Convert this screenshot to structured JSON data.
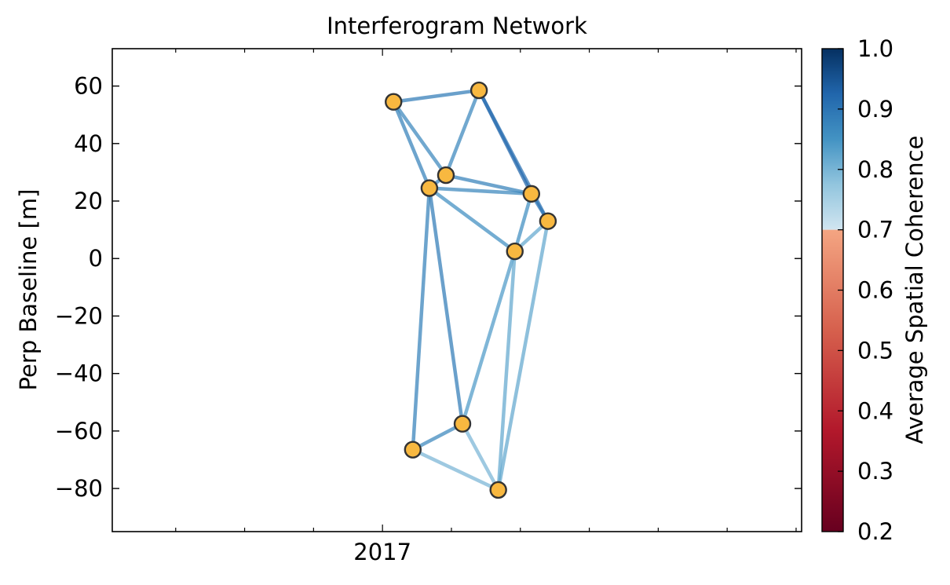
{
  "chart_data": {
    "type": "scatter",
    "title": "Interferogram Network",
    "xlabel": "",
    "ylabel": "Perp Baseline [m]",
    "x_tick_labels": [
      {
        "x": 2017.0,
        "label": "2017"
      }
    ],
    "y_ticks": [
      60,
      40,
      20,
      0,
      -20,
      -40,
      -60,
      -80
    ],
    "y_tick_labels": [
      "60",
      "40",
      "20",
      "0",
      "−20",
      "−40",
      "−60",
      "−80"
    ],
    "xlim": [
      2016.02,
      2018.52
    ],
    "ylim": [
      -95,
      73
    ],
    "nodes": [
      {
        "x": 2017.04,
        "y": 54.5
      },
      {
        "x": 2017.35,
        "y": 58.5
      },
      {
        "x": 2017.23,
        "y": 29.0
      },
      {
        "x": 2017.17,
        "y": 24.5
      },
      {
        "x": 2017.54,
        "y": 22.5
      },
      {
        "x": 2017.6,
        "y": 13.0
      },
      {
        "x": 2017.48,
        "y": 2.5
      },
      {
        "x": 2017.29,
        "y": -57.5
      },
      {
        "x": 2017.11,
        "y": -66.5
      },
      {
        "x": 2017.42,
        "y": -80.5
      }
    ],
    "edges": [
      {
        "from": 0,
        "to": 1,
        "coherence": 0.89
      },
      {
        "from": 0,
        "to": 3,
        "coherence": 0.88
      },
      {
        "from": 0,
        "to": 2,
        "coherence": 0.87
      },
      {
        "from": 1,
        "to": 2,
        "coherence": 0.87
      },
      {
        "from": 1,
        "to": 4,
        "coherence": 0.93
      },
      {
        "from": 1,
        "to": 5,
        "coherence": 0.91
      },
      {
        "from": 2,
        "to": 3,
        "coherence": 0.88
      },
      {
        "from": 2,
        "to": 4,
        "coherence": 0.88
      },
      {
        "from": 3,
        "to": 4,
        "coherence": 0.87
      },
      {
        "from": 3,
        "to": 6,
        "coherence": 0.86
      },
      {
        "from": 3,
        "to": 8,
        "coherence": 0.88
      },
      {
        "from": 3,
        "to": 7,
        "coherence": 0.89
      },
      {
        "from": 4,
        "to": 6,
        "coherence": 0.86
      },
      {
        "from": 4,
        "to": 5,
        "coherence": 0.9
      },
      {
        "from": 5,
        "to": 6,
        "coherence": 0.82
      },
      {
        "from": 5,
        "to": 9,
        "coherence": 0.82
      },
      {
        "from": 6,
        "to": 7,
        "coherence": 0.84
      },
      {
        "from": 6,
        "to": 9,
        "coherence": 0.82
      },
      {
        "from": 7,
        "to": 8,
        "coherence": 0.87
      },
      {
        "from": 7,
        "to": 9,
        "coherence": 0.8
      },
      {
        "from": 8,
        "to": 9,
        "coherence": 0.8
      }
    ],
    "node_color": "#f8b840",
    "node_edge_color": "#333333",
    "colorbar": {
      "label": "Average Spatial Coherence",
      "range": [
        0.2,
        1.0
      ],
      "cutoff": 0.7,
      "ticks": [
        1.0,
        0.9,
        0.8,
        0.7,
        0.6,
        0.5,
        0.4,
        0.3,
        0.2
      ],
      "tick_labels": [
        "1.0",
        "0.9",
        "0.8",
        "0.7",
        "0.6",
        "0.5",
        "0.4",
        "0.3",
        "0.2"
      ],
      "high_colors": [
        "#d1e5f0",
        "#92c5de",
        "#4393c3",
        "#2166ac",
        "#053061"
      ],
      "low_colors": [
        "#67001f",
        "#b2182b",
        "#d6604d",
        "#f4a582"
      ]
    },
    "grid": false,
    "legend": "none"
  }
}
